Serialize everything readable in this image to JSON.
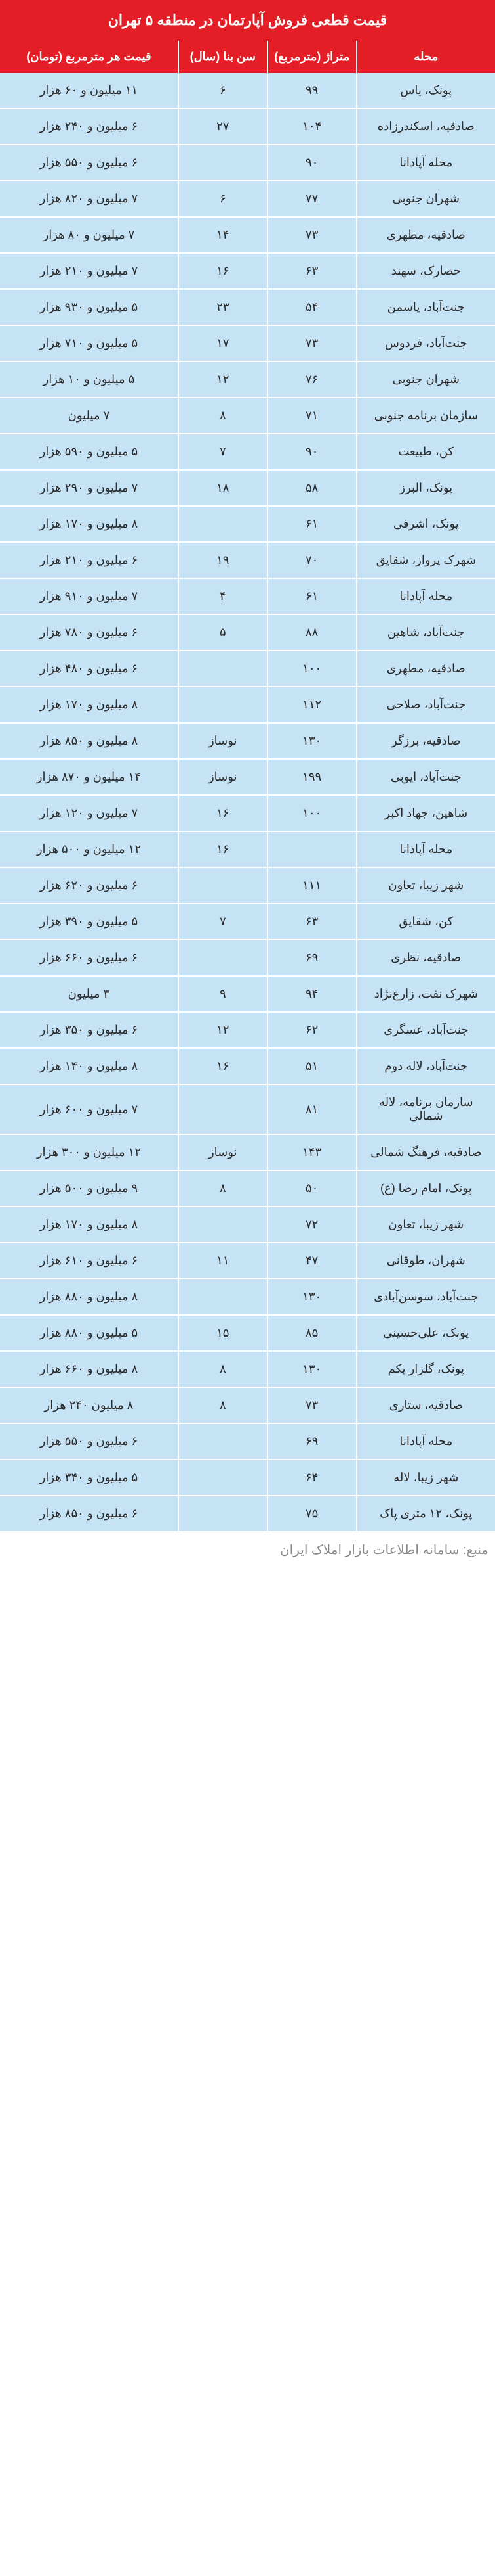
{
  "title": "قیمت قطعی فروش آپارتمان در منطقه ۵ تهران",
  "columns": [
    "محله",
    "متراژ (مترمربع)",
    "سن بنا (سال)",
    "قیمت هر مترمربع (تومان)"
  ],
  "rows": [
    [
      "پونک، یاس",
      "۹۹",
      "۶",
      "۱۱ میلیون و ۶۰ هزار"
    ],
    [
      "صادقیه، اسکندرزاده",
      "۱۰۴",
      "۲۷",
      "۶ میلیون و ۲۴۰ هزار"
    ],
    [
      "محله آپادانا",
      "۹۰",
      "",
      "۶ میلیون و ۵۵۰ هزار"
    ],
    [
      "شهران جنوبی",
      "۷۷",
      "۶",
      "۷ میلیون و ۸۲۰ هزار"
    ],
    [
      "صادقیه، مطهری",
      "۷۳",
      "۱۴",
      "۷ میلیون و ۸۰ هزار"
    ],
    [
      "حصارک، سهند",
      "۶۳",
      "۱۶",
      "۷ میلیون و ۲۱۰ هزار"
    ],
    [
      "جنت‌آباد، یاسمن",
      "۵۴",
      "۲۳",
      "۵ میلیون و ۹۳۰ هزار"
    ],
    [
      "جنت‌آباد، فردوس",
      "۷۳",
      "۱۷",
      "۵ میلیون و ۷۱۰ هزار"
    ],
    [
      "شهران جنوبی",
      "۷۶",
      "۱۲",
      "۵ میلیون و ۱۰ هزار"
    ],
    [
      "سازمان برنامه جنوبی",
      "۷۱",
      "۸",
      "۷ میلیون"
    ],
    [
      "کن، طبیعت",
      "۹۰",
      "۷",
      "۵ میلیون و ۵۹۰ هزار"
    ],
    [
      "پونک، البرز",
      "۵۸",
      "۱۸",
      "۷ میلیون و ۲۹۰ هزار"
    ],
    [
      "پونک، اشرفی",
      "۶۱",
      "",
      "۸ میلیون و ۱۷۰ هزار"
    ],
    [
      "شهرک پرواز، شقایق",
      "۷۰",
      "۱۹",
      "۶ میلیون و ۲۱۰ هزار"
    ],
    [
      "محله آپادانا",
      "۶۱",
      "۴",
      "۷ میلیون و ۹۱۰ هزار"
    ],
    [
      "جنت‌آباد، شاهین",
      "۸۸",
      "۵",
      "۶ میلیون و ۷۸۰ هزار"
    ],
    [
      "صادقیه، مطهری",
      "۱۰۰",
      "",
      "۶ میلیون و ۴۸۰ هزار"
    ],
    [
      "جنت‌آباد، صلاحی",
      "۱۱۲",
      "",
      "۸ میلیون و ۱۷۰ هزار"
    ],
    [
      "صادقیه، برزگر",
      "۱۳۰",
      "نوساز",
      "۸ میلیون و ۸۵۰ هزار"
    ],
    [
      "جنت‌آباد، ایوبی",
      "۱۹۹",
      "نوساز",
      "۱۴ میلیون و ۸۷۰ هزار"
    ],
    [
      "شاهین، جهاد اکبر",
      "۱۰۰",
      "۱۶",
      "۷ میلیون و ۱۲۰ هزار"
    ],
    [
      "محله آپادانا",
      "",
      "۱۶",
      "۱۲ میلیون و ۵۰۰ هزار"
    ],
    [
      "شهر زیبا، تعاون",
      "۱۱۱",
      "",
      "۶ میلیون و ۶۲۰ هزار"
    ],
    [
      "کن، شقایق",
      "۶۳",
      "۷",
      "۵ میلیون و ۳۹۰ هزار"
    ],
    [
      "صادقیه، نظری",
      "۶۹",
      "",
      "۶ میلیون و ۶۶۰ هزار"
    ],
    [
      "شهرک نفت، زارع‌نژاد",
      "۹۴",
      "۹",
      "۳ میلیون"
    ],
    [
      "جنت‌آباد، عسگری",
      "۶۲",
      "۱۲",
      "۶ میلیون و ۳۵۰ هزار"
    ],
    [
      "جنت‌آباد، لاله دوم",
      "۵۱",
      "۱۶",
      "۸ میلیون و ۱۴۰ هزار"
    ],
    [
      "سازمان برنامه، لاله شمالی",
      "۸۱",
      "",
      "۷ میلیون و ۶۰۰ هزار"
    ],
    [
      "صادقیه، فرهنگ شمالی",
      "۱۴۳",
      "نوساز",
      "۱۲ میلیون و ۳۰۰ هزار"
    ],
    [
      "پونک، امام رضا (ع)",
      "۵۰",
      "۸",
      "۹ میلیون و ۵۰۰ هزار"
    ],
    [
      "شهر زیبا، تعاون",
      "۷۲",
      "",
      "۸ میلیون و ۱۷۰ هزار"
    ],
    [
      "شهران، طوقانی",
      "۴۷",
      "۱۱",
      "۶ میلیون و ۶۱۰ هزار"
    ],
    [
      "جنت‌آباد، سوسن‌آبادی",
      "۱۳۰",
      "",
      "۸ میلیون و ۸۸۰ هزار"
    ],
    [
      "پونک، علی‌حسینی",
      "۸۵",
      "۱۵",
      "۵ میلیون و ۸۸۰ هزار"
    ],
    [
      "پونک، گلزار یکم",
      "۱۳۰",
      "۸",
      "۸ میلیون و ۶۶۰ هزار"
    ],
    [
      "صادقیه، ستاری",
      "۷۳",
      "۸",
      "۸ میلیون ۲۴۰ هزار"
    ],
    [
      "محله آپادانا",
      "۶۹",
      "",
      "۶ میلیون و ۵۵۰ هزار"
    ],
    [
      "شهر زیبا، لاله",
      "۶۴",
      "",
      "۵ میلیون و ۳۴۰ هزار"
    ],
    [
      "پونک، ۱۲ متری پاک",
      "۷۵",
      "",
      "۶ میلیون و ۸۵۰ هزار"
    ]
  ],
  "footer": "منبع: سامانه اطلاعات بازار املاک ایران",
  "colors": {
    "header_bg": "#e41e26",
    "header_text": "#ffffff",
    "cell_bg": "#c5e3f5",
    "cell_text": "#2a2a2a",
    "footer_text": "#888888",
    "border": "#ffffff"
  }
}
